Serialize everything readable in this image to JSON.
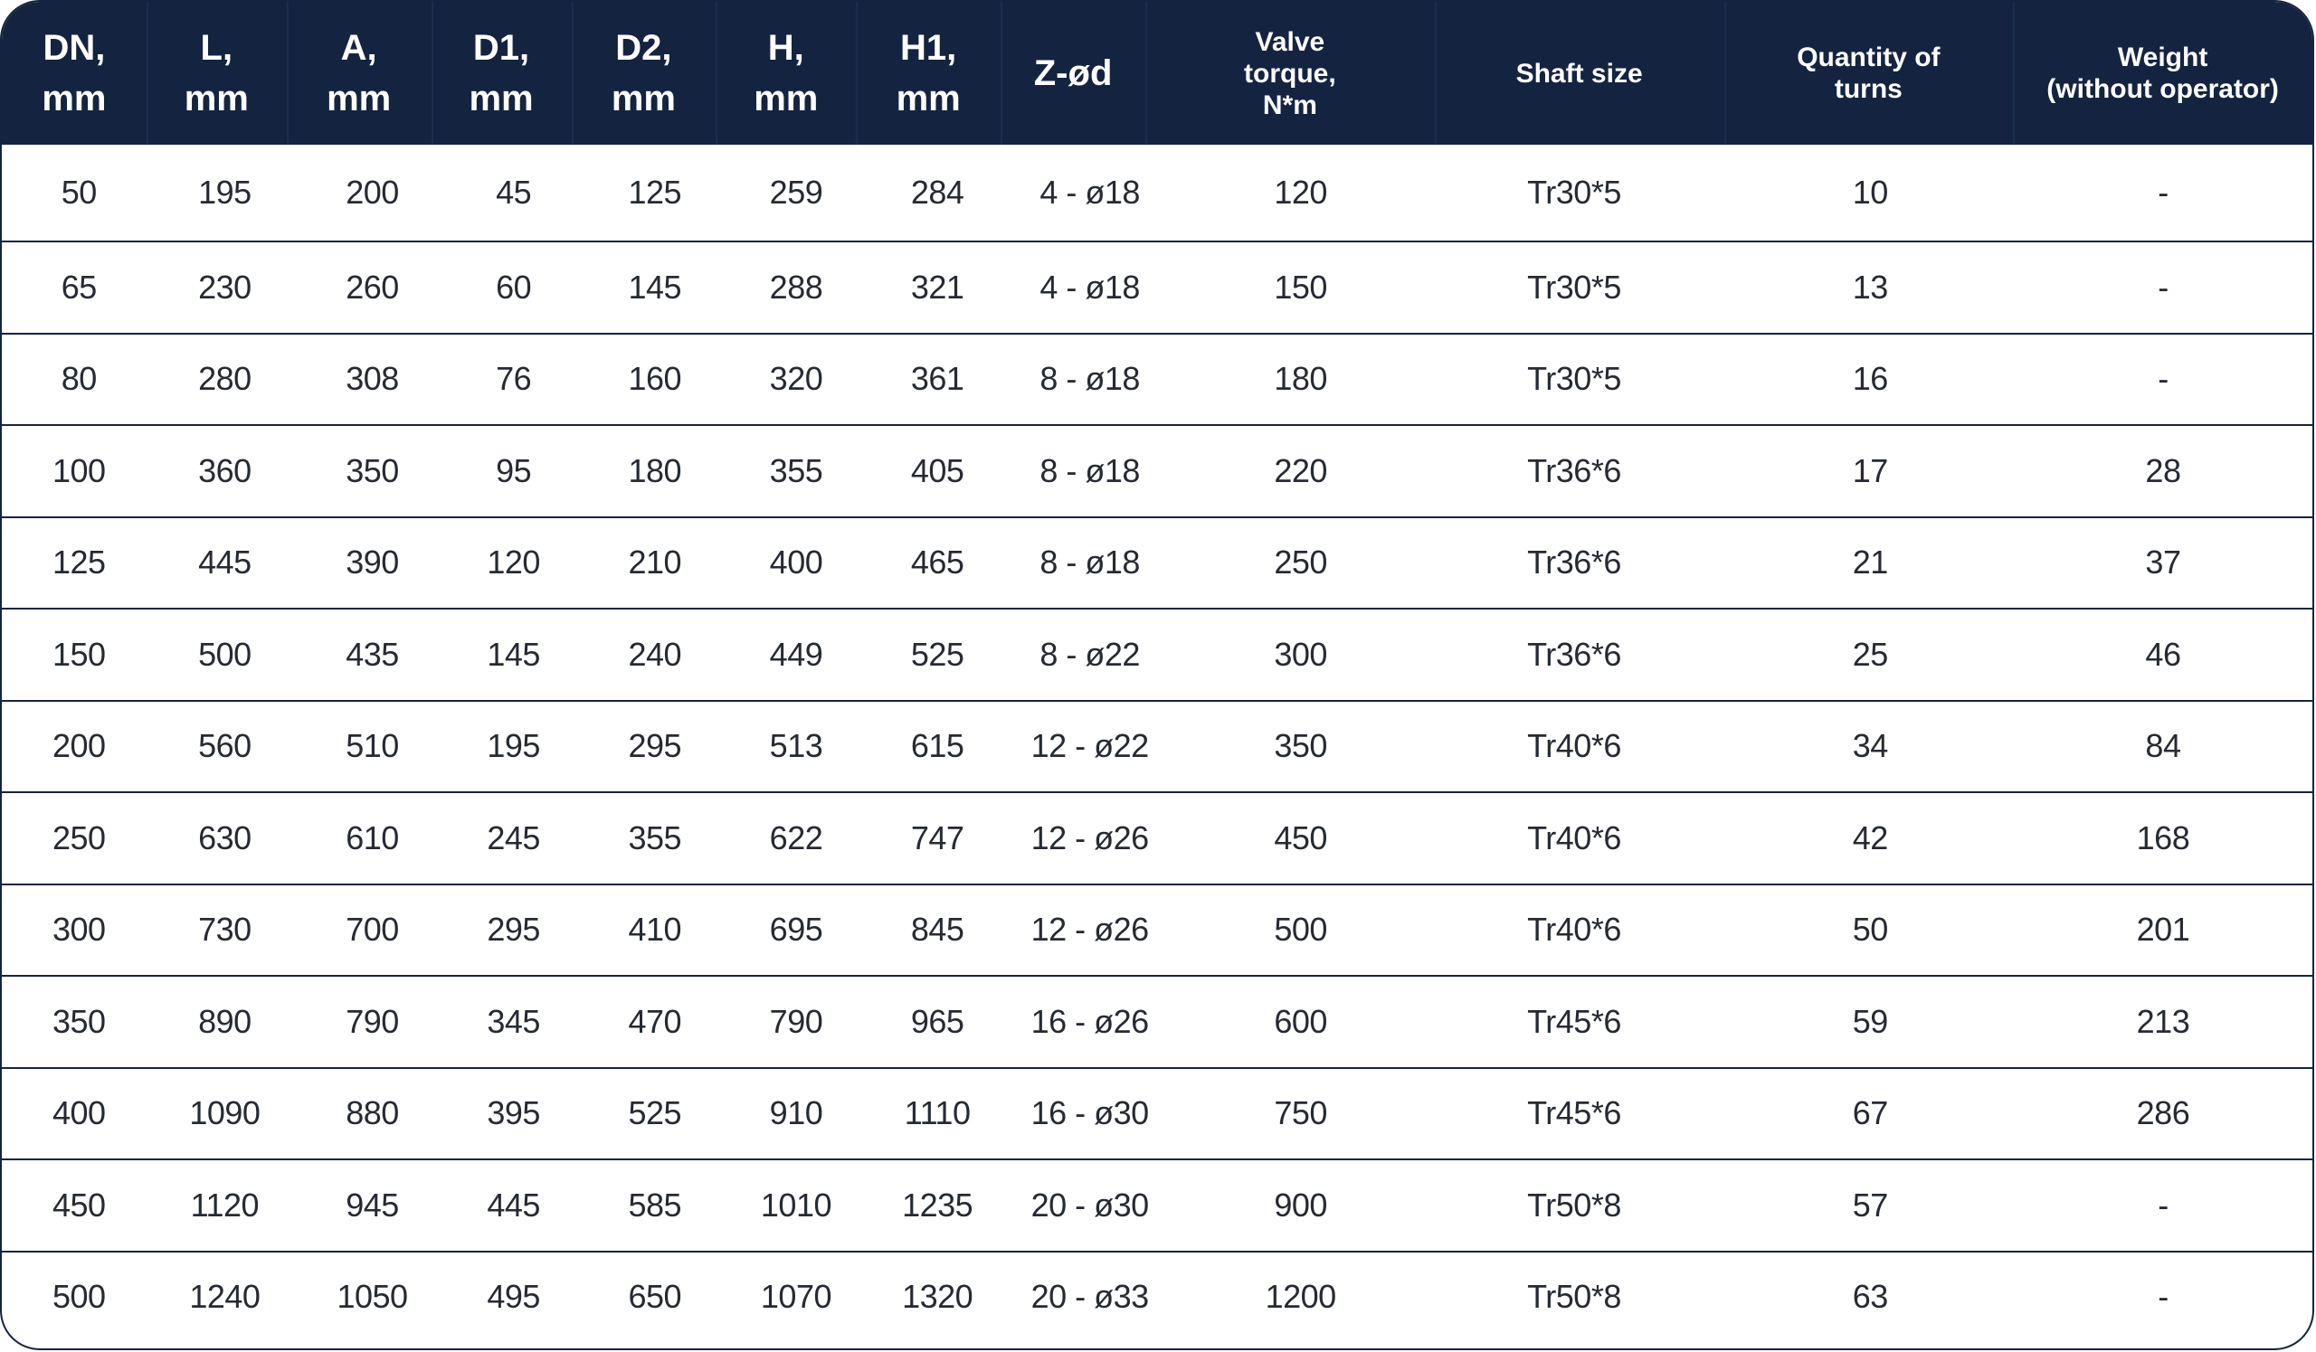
{
  "table": {
    "headers": [
      "DN,\nmm",
      "L,\nmm",
      "A,\nmm",
      "D1,\nmm",
      "D2,\nmm",
      "H,\nmm",
      "H1,\nmm",
      "Z-ød",
      "Valve\ntorque,\nN*m",
      "Shaft size",
      "Quantity of\nturns",
      "Weight\n(without operator)"
    ],
    "rows": [
      [
        "50",
        "195",
        "200",
        "45",
        "125",
        "259",
        "284",
        "4 - ø18",
        "120",
        "Tr30*5",
        "10",
        "-"
      ],
      [
        "65",
        "230",
        "260",
        "60",
        "145",
        "288",
        "321",
        "4 - ø18",
        "150",
        "Tr30*5",
        "13",
        "-"
      ],
      [
        "80",
        "280",
        "308",
        "76",
        "160",
        "320",
        "361",
        "8 - ø18",
        "180",
        "Tr30*5",
        "16",
        "-"
      ],
      [
        "100",
        "360",
        "350",
        "95",
        "180",
        "355",
        "405",
        "8 - ø18",
        "220",
        "Tr36*6",
        "17",
        "28"
      ],
      [
        "125",
        "445",
        "390",
        "120",
        "210",
        "400",
        "465",
        "8 - ø18",
        "250",
        "Tr36*6",
        "21",
        "37"
      ],
      [
        "150",
        "500",
        "435",
        "145",
        "240",
        "449",
        "525",
        "8 - ø22",
        "300",
        "Tr36*6",
        "25",
        "46"
      ],
      [
        "200",
        "560",
        "510",
        "195",
        "295",
        "513",
        "615",
        "12 - ø22",
        "350",
        "Tr40*6",
        "34",
        "84"
      ],
      [
        "250",
        "630",
        "610",
        "245",
        "355",
        "622",
        "747",
        "12 - ø26",
        "450",
        "Tr40*6",
        "42",
        "168"
      ],
      [
        "300",
        "730",
        "700",
        "295",
        "410",
        "695",
        "845",
        "12 - ø26",
        "500",
        "Tr40*6",
        "50",
        "201"
      ],
      [
        "350",
        "890",
        "790",
        "345",
        "470",
        "790",
        "965",
        "16 - ø26",
        "600",
        "Tr45*6",
        "59",
        "213"
      ],
      [
        "400",
        "1090",
        "880",
        "395",
        "525",
        "910",
        "1110",
        "16 - ø30",
        "750",
        "Tr45*6",
        "67",
        "286"
      ],
      [
        "450",
        "1120",
        "945",
        "445",
        "585",
        "1010",
        "1235",
        "20 - ø30",
        "900",
        "Tr50*8",
        "57",
        "-"
      ],
      [
        "500",
        "1240",
        "1050",
        "495",
        "650",
        "1070",
        "1320",
        "20 - ø33",
        "1200",
        "Tr50*8",
        "63",
        "-"
      ]
    ]
  },
  "colors": {
    "header_bg": "#142440",
    "header_text": "#ffffff",
    "cell_text": "#262a33",
    "border": "#142440"
  }
}
